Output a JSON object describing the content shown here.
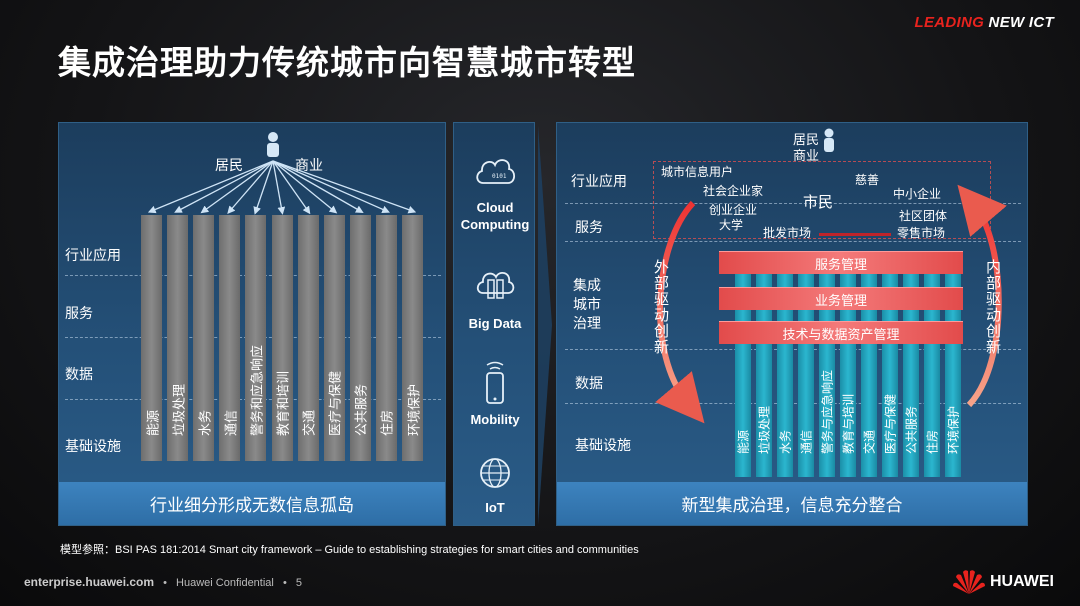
{
  "brand": {
    "leading": "LEADING",
    "new_ict": " NEW ICT"
  },
  "title": "集成治理助力传统城市向智慧城市转型",
  "left": {
    "top_labels": {
      "residents": "居民",
      "business": "商业"
    },
    "rows": [
      "行业应用",
      "服务",
      "数据",
      "基础设施"
    ],
    "columns": [
      "能源",
      "垃圾处理",
      "水务",
      "通信",
      "警务和应急响应",
      "教育和培训",
      "交通",
      "医疗与保健",
      "公共服务",
      "住房",
      "环境保护"
    ],
    "bottom": "行业细分形成无数信息孤岛"
  },
  "middle": {
    "items": [
      {
        "icon": "cloud-icon",
        "label": "Cloud Computing"
      },
      {
        "icon": "database-icon",
        "label": "Big Data"
      },
      {
        "icon": "mobile-icon",
        "label": "Mobility"
      },
      {
        "icon": "globe-icon",
        "label": "IoT"
      }
    ]
  },
  "right": {
    "top_labels": {
      "residents": "居民",
      "business": "商业"
    },
    "rows": [
      "行业应用",
      "服务",
      "集成城市治理",
      "数据",
      "基础设施"
    ],
    "citizen_types": [
      "城市信息用户",
      "社会企业家",
      "创业企业",
      "大学",
      "市民",
      "慈善",
      "中小企业",
      "社区团体",
      "零售市场",
      "批发市场"
    ],
    "bands": [
      "服务管理",
      "业务管理",
      "技术与数据资产管理"
    ],
    "side_left": "外部驱动创新",
    "side_right": "内部驱动创新",
    "columns": [
      "能源",
      "垃圾处理",
      "水务",
      "通信",
      "警务与应急响应",
      "教育与培训",
      "交通",
      "医疗与保健",
      "公共服务",
      "住房",
      "环境保护"
    ],
    "bottom": "新型集成治理，信息充分整合"
  },
  "footnote": "模型参照：BSI  PAS 181:2014 Smart city framework – Guide to establishing strategies for  smart cities and communities",
  "footer": {
    "site": "enterprise.huawei.com",
    "confidential": "Huawei Confidential",
    "page": "5"
  },
  "logo_text": "HUAWEI",
  "colors": {
    "accent_red": "#e8231e",
    "band_red": "#f06262",
    "teal": "#2bb6cf",
    "panel_blue": "#245078"
  }
}
